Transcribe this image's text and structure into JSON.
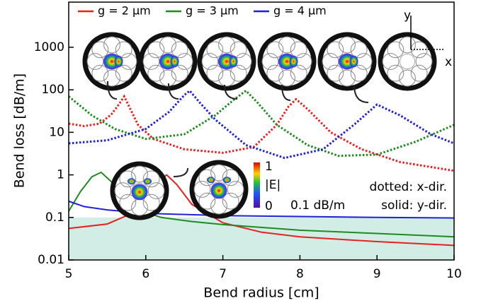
{
  "chart_data": {
    "type": "line",
    "xlabel": "Bend radius [cm]",
    "ylabel": "Bend loss [dB/m]",
    "xlim": [
      5,
      10
    ],
    "xticks": [
      5,
      6,
      7,
      8,
      9,
      10
    ],
    "ylim": [
      0.01,
      11500
    ],
    "yticks": [
      0.01,
      0.1,
      1,
      10,
      100,
      1000
    ],
    "log_y": true,
    "threshold": 0.1,
    "threshold_label": "0.1 dB/m",
    "annotations": [
      "dotted: x-dir.",
      "solid: y-dir."
    ],
    "colorbar": {
      "title": "|E|",
      "max_label": "1",
      "min_label": "0"
    },
    "inset_axes": [
      "x",
      "y"
    ],
    "series": [
      {
        "name": "g = 2 µm",
        "color": "#e8201e",
        "x_dir": {
          "x": [
            5,
            5.2,
            5.4,
            5.55,
            5.65,
            5.72,
            5.8,
            5.9,
            6.1,
            6.5,
            7,
            7.4,
            7.7,
            7.85,
            7.95,
            8.1,
            8.4,
            8.8,
            9.3,
            10
          ],
          "values": [
            16,
            14,
            16,
            26,
            45,
            70,
            35,
            15,
            7,
            4,
            3.3,
            4.5,
            15,
            40,
            60,
            35,
            10,
            4,
            2,
            1.25
          ]
        },
        "y_dir": {
          "x": [
            5,
            5.5,
            5.8,
            6,
            6.15,
            6.27,
            6.4,
            6.6,
            7,
            7.5,
            8,
            9,
            10
          ],
          "values": [
            0.055,
            0.07,
            0.12,
            0.3,
            0.7,
            1,
            0.6,
            0.2,
            0.075,
            0.045,
            0.035,
            0.027,
            0.022
          ]
        }
      },
      {
        "name": "g = 3 µm",
        "color": "#1f8a1f",
        "x_dir": {
          "x": [
            5,
            5.3,
            5.6,
            6,
            6.5,
            6.9,
            7.15,
            7.3,
            7.45,
            7.7,
            8.1,
            8.5,
            9,
            9.5,
            10
          ],
          "values": [
            70,
            25,
            12,
            7,
            9,
            25,
            60,
            95,
            50,
            15,
            5,
            2.8,
            3,
            6,
            15
          ]
        },
        "y_dir": {
          "x": [
            5,
            5.15,
            5.3,
            5.42,
            5.55,
            5.7,
            5.9,
            6.2,
            6.6,
            7,
            8,
            9,
            10
          ],
          "values": [
            0.14,
            0.4,
            0.9,
            1.15,
            0.7,
            0.3,
            0.15,
            0.1,
            0.08,
            0.068,
            0.05,
            0.042,
            0.035
          ]
        }
      },
      {
        "name": "g = 4 µm",
        "color": "#2020d8",
        "x_dir": {
          "x": [
            5,
            5.5,
            6,
            6.3,
            6.5,
            6.57,
            6.7,
            6.9,
            7.3,
            7.8,
            8.3,
            8.7,
            9,
            9.3,
            9.7,
            10
          ],
          "values": [
            5.5,
            6.5,
            12,
            30,
            75,
            95,
            50,
            20,
            5,
            2.5,
            4,
            15,
            45,
            25,
            9,
            5.5
          ]
        },
        "y_dir": {
          "x": [
            5,
            5.2,
            5.5,
            6,
            7,
            8,
            9,
            10
          ],
          "values": [
            0.24,
            0.18,
            0.15,
            0.125,
            0.11,
            0.105,
            0.1,
            0.097
          ]
        }
      }
    ]
  }
}
